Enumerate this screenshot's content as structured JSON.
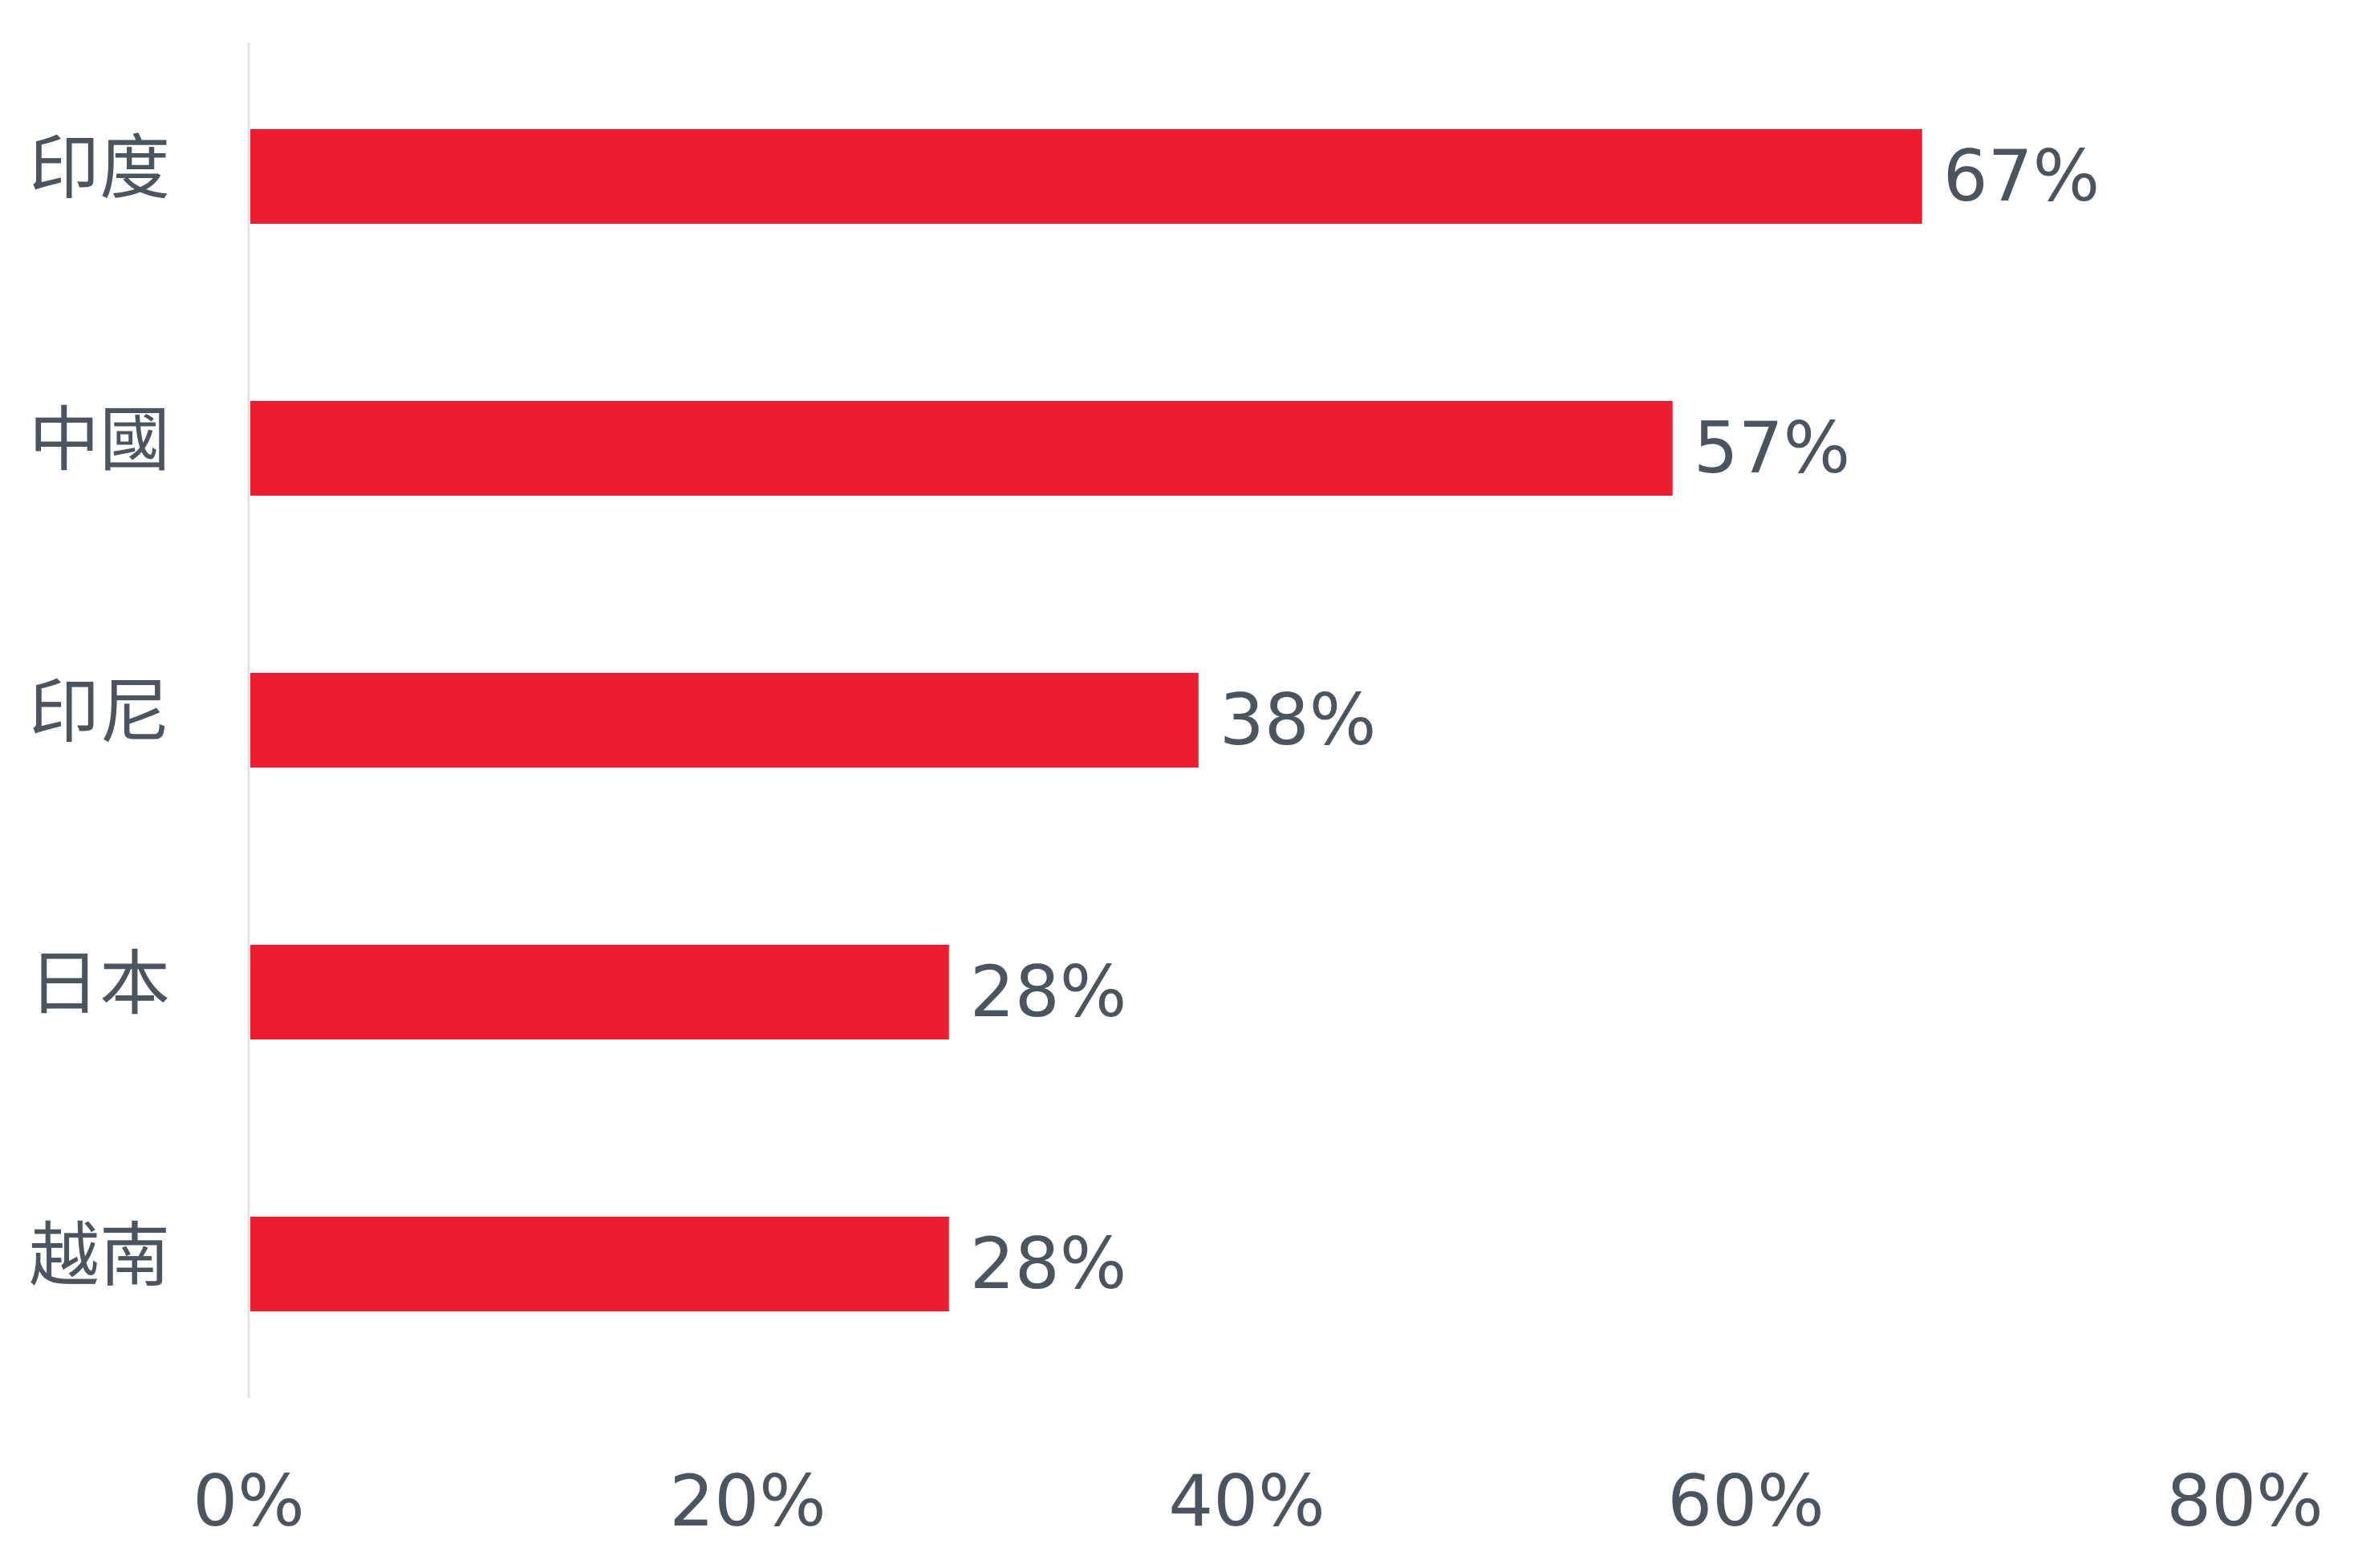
{
  "chart_data": {
    "type": "bar",
    "orientation": "horizontal",
    "categories": [
      "印度",
      "中國",
      "印尼",
      "日本",
      "越南"
    ],
    "values": [
      67,
      57,
      38,
      28,
      28
    ],
    "value_labels": [
      "67%",
      "57%",
      "38%",
      "28%",
      "28%"
    ],
    "color": "#ed1c2e",
    "xlim": [
      0,
      80
    ],
    "xticks": [
      {
        "value": 0,
        "label": "0%"
      },
      {
        "value": 20,
        "label": "20%"
      },
      {
        "value": 40,
        "label": "40%"
      },
      {
        "value": 60,
        "label": "60%"
      },
      {
        "value": 80,
        "label": "80%"
      }
    ],
    "grid": false
  }
}
